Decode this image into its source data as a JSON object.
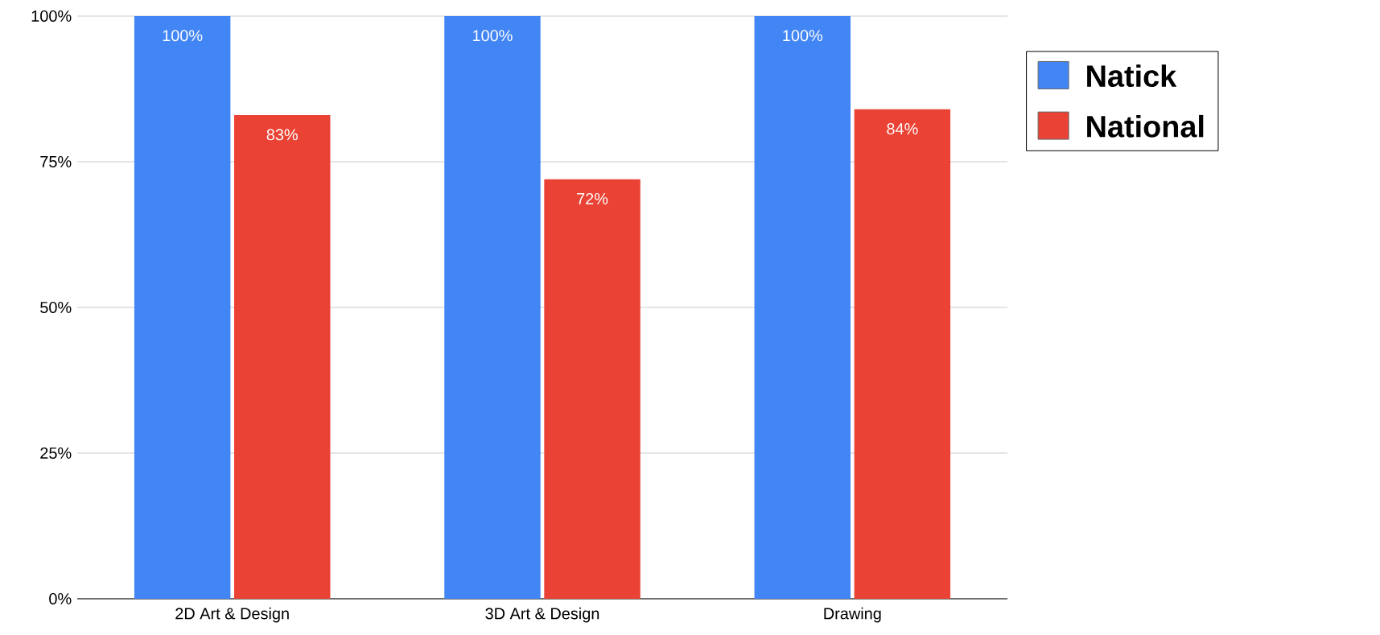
{
  "chart_data": {
    "type": "bar",
    "categories": [
      "2D Art & Design",
      "3D Art & Design",
      "Drawing"
    ],
    "series": [
      {
        "name": "Natick",
        "color": "#4285f4",
        "values": [
          100,
          100,
          100
        ],
        "value_labels": [
          "100%",
          "100%",
          "100%"
        ]
      },
      {
        "name": "National",
        "color": "#ea4335",
        "values": [
          83,
          72,
          84
        ],
        "value_labels": [
          "83%",
          "72%",
          "84%"
        ]
      }
    ],
    "ylim": [
      0,
      100
    ],
    "yticks": [
      {
        "value": 0,
        "label": "0%"
      },
      {
        "value": 25,
        "label": "25%"
      },
      {
        "value": 50,
        "label": "50%"
      },
      {
        "value": 75,
        "label": "75%"
      },
      {
        "value": 100,
        "label": "100%"
      }
    ],
    "grid": "y",
    "legend": "top right"
  }
}
